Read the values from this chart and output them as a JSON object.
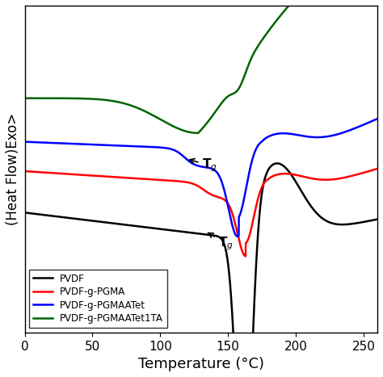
{
  "xlim": [
    0,
    260
  ],
  "xlabel": "Temperature (°C)",
  "ylabel": "(Heat Flow)Exo>",
  "title": "",
  "legend": [
    "PVDF",
    "PVDF-g-PGMA",
    "PVDF-g-PGMAATet",
    "PVDF-g-PGMAATet1TA"
  ],
  "colors": [
    "black",
    "red",
    "blue",
    "darkgreen"
  ],
  "linewidth": 1.8,
  "vertical_shifts": [
    0.0,
    0.38,
    0.65,
    1.05
  ],
  "ylim": [
    -1.1,
    1.9
  ],
  "xticks": [
    0,
    50,
    100,
    150,
    200,
    250
  ]
}
